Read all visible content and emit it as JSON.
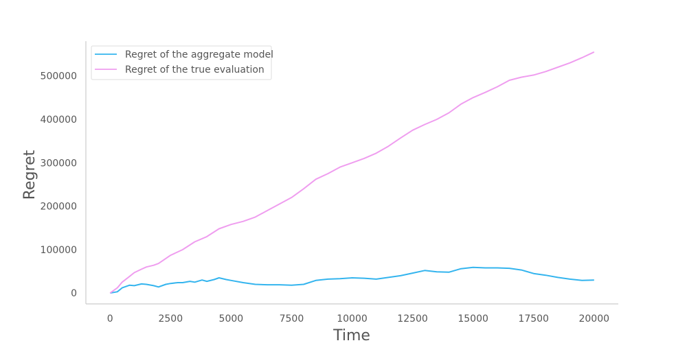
{
  "chart_data": {
    "type": "line",
    "title": "",
    "xlabel": "Time",
    "ylabel": "Regret",
    "xlim": [
      -1000,
      21000
    ],
    "ylim": [
      -25000,
      580000
    ],
    "xticks": [
      0,
      2500,
      5000,
      7500,
      10000,
      12500,
      15000,
      17500,
      20000
    ],
    "yticks": [
      0,
      100000,
      200000,
      300000,
      400000,
      500000
    ],
    "grid": false,
    "legend_position": "top-left",
    "series": [
      {
        "name": "Regret of the aggregate model",
        "color": "#33b4ee",
        "x": [
          0,
          300,
          500,
          800,
          1000,
          1300,
          1500,
          1800,
          2000,
          2300,
          2500,
          2800,
          3000,
          3300,
          3500,
          3800,
          4000,
          4300,
          4500,
          4800,
          5000,
          5500,
          6000,
          6500,
          7000,
          7500,
          8000,
          8500,
          9000,
          9500,
          10000,
          10500,
          11000,
          11500,
          12000,
          12500,
          13000,
          13500,
          14000,
          14500,
          15000,
          15500,
          16000,
          16500,
          17000,
          17500,
          18000,
          18500,
          19000,
          19500,
          20000
        ],
        "y": [
          0,
          3000,
          12000,
          18000,
          17000,
          21000,
          20000,
          17000,
          14000,
          20000,
          22000,
          24000,
          24000,
          27000,
          25000,
          30000,
          27000,
          31000,
          35000,
          31000,
          29000,
          24000,
          20000,
          19000,
          19000,
          18000,
          20000,
          29000,
          32000,
          33000,
          35000,
          34000,
          32000,
          36000,
          40000,
          46000,
          52000,
          49000,
          48000,
          56000,
          59000,
          58000,
          58000,
          57000,
          53000,
          45000,
          41000,
          36000,
          32000,
          29000,
          30000
        ]
      },
      {
        "name": "Regret of the true evaluation",
        "color": "#ef9def",
        "x": [
          0,
          300,
          500,
          800,
          1000,
          1300,
          1500,
          1800,
          2000,
          2500,
          3000,
          3500,
          4000,
          4500,
          5000,
          5500,
          6000,
          6500,
          7000,
          7500,
          8000,
          8500,
          9000,
          9500,
          10000,
          10500,
          11000,
          11500,
          12000,
          12500,
          13000,
          13500,
          14000,
          14500,
          15000,
          15500,
          16000,
          16500,
          17000,
          17500,
          18000,
          18500,
          19000,
          19500,
          20000
        ],
        "y": [
          0,
          12000,
          25000,
          38000,
          47000,
          55000,
          60000,
          64000,
          68000,
          87000,
          100000,
          118000,
          130000,
          148000,
          158000,
          165000,
          175000,
          190000,
          205000,
          220000,
          240000,
          262000,
          275000,
          290000,
          300000,
          310000,
          322000,
          338000,
          357000,
          375000,
          388000,
          400000,
          415000,
          435000,
          450000,
          462000,
          475000,
          490000,
          497000,
          502000,
          510000,
          520000,
          530000,
          542000,
          555000
        ]
      }
    ]
  }
}
